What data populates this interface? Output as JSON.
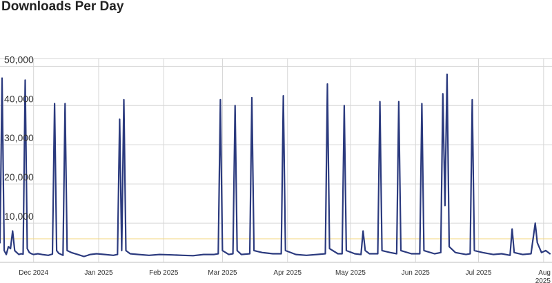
{
  "chart_data": {
    "type": "line",
    "title": "Downloads Per Day",
    "xlabel": "",
    "ylabel": "",
    "ylim": [
      0,
      52000
    ],
    "xlim": [
      "2024-11-15",
      "2025-08-05"
    ],
    "grid": true,
    "legend": "none",
    "y_ticks": [
      {
        "value": 10000,
        "label": "10,000"
      },
      {
        "value": 20000,
        "label": "20,000"
      },
      {
        "value": 30000,
        "label": "30,000"
      },
      {
        "value": 40000,
        "label": "40,000"
      },
      {
        "value": 50000,
        "label": "50,000"
      }
    ],
    "x_ticks": [
      {
        "date": "2024-12-01",
        "label": "Dec 2024"
      },
      {
        "date": "2025-01-01",
        "label": "Jan 2025"
      },
      {
        "date": "2025-02-01",
        "label": "Feb 2025"
      },
      {
        "date": "2025-03-01",
        "label": "Mar 2025"
      },
      {
        "date": "2025-04-01",
        "label": "Apr 2025"
      },
      {
        "date": "2025-05-01",
        "label": "May 2025"
      },
      {
        "date": "2025-06-01",
        "label": "Jun 2025"
      },
      {
        "date": "2025-07-01",
        "label": "Jul 2025"
      },
      {
        "date": "2025-08-01",
        "label": "Aug 2025"
      }
    ],
    "reference_line": {
      "value": 6000,
      "color": "#f3d98a"
    },
    "series": [
      {
        "color": "#2b3a7e",
        "points": [
          [
            "2024-11-15",
            5000
          ],
          [
            "2024-11-16",
            47000
          ],
          [
            "2024-11-17",
            3000
          ],
          [
            "2024-11-18",
            2000
          ],
          [
            "2024-11-19",
            4000
          ],
          [
            "2024-11-20",
            3500
          ],
          [
            "2024-11-21",
            8000
          ],
          [
            "2024-11-22",
            3000
          ],
          [
            "2024-11-23",
            2500
          ],
          [
            "2024-11-24",
            2000
          ],
          [
            "2024-11-25",
            2200
          ],
          [
            "2024-11-26",
            2100
          ],
          [
            "2024-11-27",
            46500
          ],
          [
            "2024-11-28",
            3500
          ],
          [
            "2024-11-29",
            2500
          ],
          [
            "2024-11-30",
            2200
          ],
          [
            "2024-12-01",
            2000
          ],
          [
            "2024-12-03",
            2200
          ],
          [
            "2024-12-05",
            2000
          ],
          [
            "2024-12-08",
            1800
          ],
          [
            "2024-12-10",
            2100
          ],
          [
            "2024-12-11",
            40500
          ],
          [
            "2024-12-12",
            3000
          ],
          [
            "2024-12-13",
            2300
          ],
          [
            "2024-12-15",
            1800
          ],
          [
            "2024-12-16",
            40500
          ],
          [
            "2024-12-17",
            3000
          ],
          [
            "2024-12-19",
            2500
          ],
          [
            "2024-12-22",
            2000
          ],
          [
            "2024-12-25",
            1500
          ],
          [
            "2024-12-28",
            2000
          ],
          [
            "2024-12-31",
            2200
          ],
          [
            "2025-01-04",
            2000
          ],
          [
            "2025-01-08",
            1800
          ],
          [
            "2025-01-10",
            2000
          ],
          [
            "2025-01-11",
            36500
          ],
          [
            "2025-01-12",
            3000
          ],
          [
            "2025-01-13",
            41500
          ],
          [
            "2025-01-14",
            3000
          ],
          [
            "2025-01-16",
            2200
          ],
          [
            "2025-01-20",
            2000
          ],
          [
            "2025-01-25",
            1800
          ],
          [
            "2025-01-30",
            2000
          ],
          [
            "2025-02-05",
            1900
          ],
          [
            "2025-02-10",
            1800
          ],
          [
            "2025-02-15",
            1700
          ],
          [
            "2025-02-20",
            2000
          ],
          [
            "2025-02-25",
            2000
          ],
          [
            "2025-02-27",
            2200
          ],
          [
            "2025-02-28",
            41500
          ],
          [
            "2025-03-01",
            3000
          ],
          [
            "2025-03-04",
            2000
          ],
          [
            "2025-03-06",
            2200
          ],
          [
            "2025-03-07",
            40000
          ],
          [
            "2025-03-08",
            3000
          ],
          [
            "2025-03-10",
            2000
          ],
          [
            "2025-03-14",
            2200
          ],
          [
            "2025-03-15",
            42000
          ],
          [
            "2025-03-16",
            3000
          ],
          [
            "2025-03-20",
            2500
          ],
          [
            "2025-03-25",
            2200
          ],
          [
            "2025-03-29",
            2200
          ],
          [
            "2025-03-30",
            42500
          ],
          [
            "2025-03-31",
            3000
          ],
          [
            "2025-04-05",
            2000
          ],
          [
            "2025-04-10",
            1800
          ],
          [
            "2025-04-15",
            2000
          ],
          [
            "2025-04-19",
            2200
          ],
          [
            "2025-04-20",
            45500
          ],
          [
            "2025-04-21",
            3500
          ],
          [
            "2025-04-25",
            2200
          ],
          [
            "2025-04-27",
            2200
          ],
          [
            "2025-04-28",
            40000
          ],
          [
            "2025-04-29",
            3000
          ],
          [
            "2025-05-03",
            2200
          ],
          [
            "2025-05-06",
            2000
          ],
          [
            "2025-05-07",
            8000
          ],
          [
            "2025-05-08",
            3000
          ],
          [
            "2025-05-10",
            2200
          ],
          [
            "2025-05-14",
            2200
          ],
          [
            "2025-05-15",
            41000
          ],
          [
            "2025-05-16",
            3000
          ],
          [
            "2025-05-20",
            2500
          ],
          [
            "2025-05-23",
            2200
          ],
          [
            "2025-05-24",
            41000
          ],
          [
            "2025-05-25",
            3000
          ],
          [
            "2025-05-30",
            2200
          ],
          [
            "2025-06-03",
            2200
          ],
          [
            "2025-06-04",
            40500
          ],
          [
            "2025-06-05",
            3000
          ],
          [
            "2025-06-10",
            2200
          ],
          [
            "2025-06-13",
            2500
          ],
          [
            "2025-06-14",
            43000
          ],
          [
            "2025-06-15",
            14500
          ],
          [
            "2025-06-16",
            48000
          ],
          [
            "2025-06-17",
            4000
          ],
          [
            "2025-06-20",
            2500
          ],
          [
            "2025-06-25",
            2000
          ],
          [
            "2025-06-27",
            2200
          ],
          [
            "2025-06-28",
            41500
          ],
          [
            "2025-06-29",
            3000
          ],
          [
            "2025-07-03",
            2500
          ],
          [
            "2025-07-08",
            2000
          ],
          [
            "2025-07-12",
            2200
          ],
          [
            "2025-07-16",
            1800
          ],
          [
            "2025-07-17",
            8500
          ],
          [
            "2025-07-18",
            2500
          ],
          [
            "2025-07-22",
            2000
          ],
          [
            "2025-07-26",
            2200
          ],
          [
            "2025-07-28",
            10000
          ],
          [
            "2025-07-29",
            5000
          ],
          [
            "2025-07-31",
            2500
          ],
          [
            "2025-08-02",
            3000
          ],
          [
            "2025-08-04",
            2200
          ]
        ]
      }
    ]
  }
}
